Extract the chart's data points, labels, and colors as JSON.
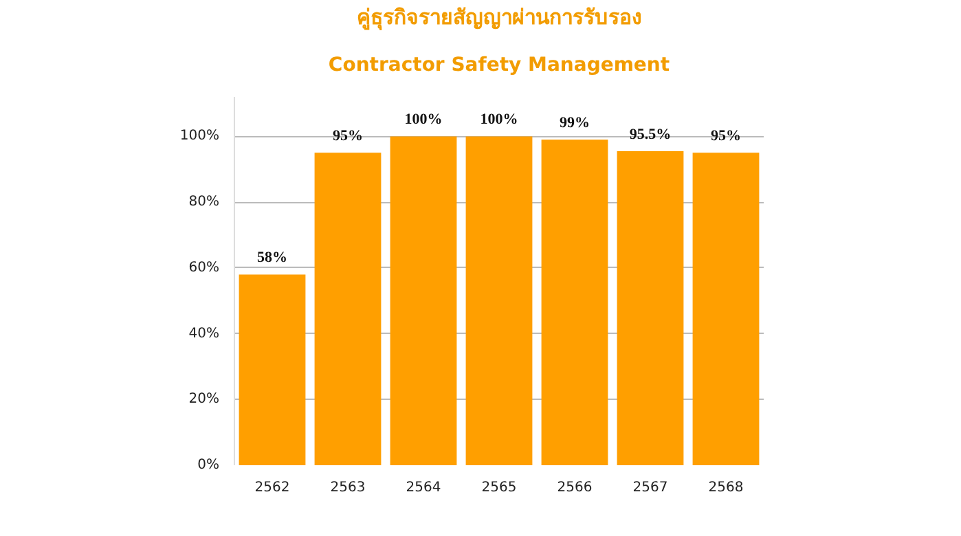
{
  "chart_data": {
    "type": "bar",
    "title": "คู่ธุรกิจรายสัญญาผ่านการรับรอง",
    "subtitle": "Contractor Safety Management",
    "categories": [
      "2562",
      "2563",
      "2564",
      "2565",
      "2566",
      "2567",
      "2568"
    ],
    "values": [
      58,
      95,
      100,
      100,
      99,
      95.5,
      95
    ],
    "value_labels": [
      "58%",
      "95%",
      "100%",
      "100%",
      "99%",
      "95.5%",
      "95%"
    ],
    "color": "#ff9f00",
    "ylim": [
      0,
      112
    ],
    "yticks": [
      {
        "value": 0,
        "label": "0%"
      },
      {
        "value": 20,
        "label": "20%"
      },
      {
        "value": 40,
        "label": "40%"
      },
      {
        "value": 60,
        "label": "60%"
      },
      {
        "value": 80,
        "label": "80%"
      },
      {
        "value": 100,
        "label": "100%"
      }
    ],
    "grid": "y"
  }
}
